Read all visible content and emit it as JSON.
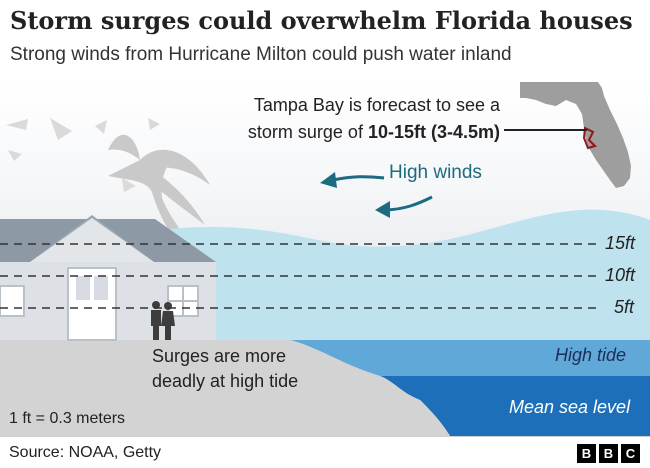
{
  "title": "Storm surges could overwhelm Florida houses",
  "subtitle": "Strong winds from Hurricane Milton could push water inland",
  "callout": {
    "line1": "Tampa Bay is forecast to see a",
    "line2_prefix": "storm surge of ",
    "line2_bold": "10-15ft (3-4.5m)"
  },
  "winds_label": "High winds",
  "levels": [
    "15ft",
    "10ft",
    "5ft"
  ],
  "high_tide_label": "High tide",
  "mean_sea_level_label": "Mean sea level",
  "tide_note": {
    "line1": "Surges are more",
    "line2": "deadly at high tide"
  },
  "conversion": "1 ft = 0.3 meters",
  "source": "Source: NOAA, Getty",
  "logo": [
    "B",
    "B",
    "C"
  ],
  "colors": {
    "surge_water": "#bfe2ef",
    "high_tide": "#5fa8d8",
    "mean_sea_level": "#1c6fb8",
    "ground": "#d3d3d3",
    "winds": "#1c6b80",
    "tampa_marker": "#8b1a1a",
    "florida": "#9e9e9e"
  }
}
